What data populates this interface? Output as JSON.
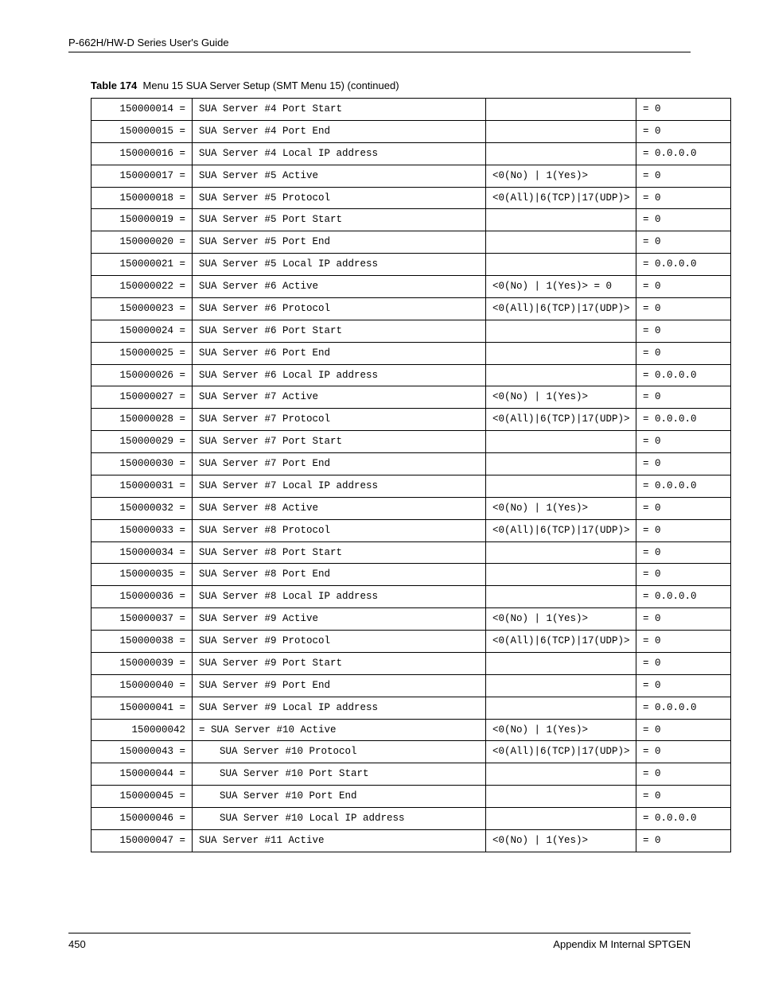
{
  "header": {
    "title": "P-662H/HW-D Series User's Guide"
  },
  "caption": {
    "label": "Table 174",
    "text": "Menu 15 SUA Server Setup (SMT Menu 15) (continued)"
  },
  "footer": {
    "page": "450",
    "section": "Appendix M Internal SPTGEN"
  },
  "rows": [
    {
      "c0": " 150000014 =",
      "c1": "SUA Server #4 Port Start",
      "c2": "",
      "c3": "= 0"
    },
    {
      "c0": " 150000015 =",
      "c1": "SUA Server #4 Port End",
      "c2": "",
      "c3": "= 0"
    },
    {
      "c0": " 150000016 =",
      "c1": "SUA Server #4 Local IP address",
      "c2": "",
      "c3": "= 0.0.0.0"
    },
    {
      "c0": " 150000017 =",
      "c1": "SUA Server #5 Active",
      "c2": "<0(No) | 1(Yes)>",
      "c3": "= 0"
    },
    {
      "c0": " 150000018 =",
      "c1": "SUA Server #5 Protocol",
      "c2": "<0(All)|6(TCP)|17(UDP)>",
      "c3": "= 0"
    },
    {
      "c0": " 150000019 =",
      "c1": "SUA Server #5 Port Start",
      "c2": "",
      "c3": "= 0"
    },
    {
      "c0": " 150000020 =",
      "c1": "SUA Server #5 Port End",
      "c2": "",
      "c3": "= 0"
    },
    {
      "c0": " 150000021 =",
      "c1": "SUA Server #5 Local IP address",
      "c2": "",
      "c3": "= 0.0.0.0"
    },
    {
      "c0": " 150000022 =",
      "c1": "SUA Server #6 Active",
      "c2": "<0(No) | 1(Yes)> = 0",
      "c3": "= 0"
    },
    {
      "c0": " 150000023 =",
      "c1": "SUA Server #6 Protocol",
      "c2": "<0(All)|6(TCP)|17(UDP)>",
      "c3": "= 0"
    },
    {
      "c0": " 150000024 =",
      "c1": "SUA Server #6 Port Start",
      "c2": "",
      "c3": "= 0"
    },
    {
      "c0": " 150000025 =",
      "c1": "SUA Server #6 Port End",
      "c2": "",
      "c3": "= 0"
    },
    {
      "c0": " 150000026 =",
      "c1": "SUA Server #6 Local IP address",
      "c2": "",
      "c3": "= 0.0.0.0"
    },
    {
      "c0": " 150000027 =",
      "c1": "SUA Server #7 Active",
      "c2": "<0(No) | 1(Yes)>",
      "c3": "= 0"
    },
    {
      "c0": " 150000028 =",
      "c1": "SUA Server #7 Protocol",
      "c2": "<0(All)|6(TCP)|17(UDP)>",
      "c3": "= 0.0.0.0"
    },
    {
      "c0": " 150000029 =",
      "c1": "SUA Server #7 Port Start",
      "c2": "",
      "c3": "= 0"
    },
    {
      "c0": " 150000030 =",
      "c1": "SUA Server #7 Port End",
      "c2": "",
      "c3": "= 0"
    },
    {
      "c0": " 150000031 =",
      "c1": "SUA Server #7 Local IP address",
      "c2": "",
      "c3": "= 0.0.0.0"
    },
    {
      "c0": " 150000032 =",
      "c1": "SUA Server #8 Active",
      "c2": "<0(No) | 1(Yes)>",
      "c3": "= 0"
    },
    {
      "c0": " 150000033 =",
      "c1": "SUA Server #8 Protocol",
      "c2": "<0(All)|6(TCP)|17(UDP)>",
      "c3": "= 0"
    },
    {
      "c0": " 150000034 =",
      "c1": "SUA Server #8 Port Start",
      "c2": "",
      "c3": "= 0"
    },
    {
      "c0": " 150000035 =",
      "c1": "SUA Server #8 Port End",
      "c2": "",
      "c3": "= 0"
    },
    {
      "c0": " 150000036 =",
      "c1": "SUA Server #8 Local IP address",
      "c2": "",
      "c3": "= 0.0.0.0"
    },
    {
      "c0": " 150000037 =",
      "c1": "SUA Server #9 Active",
      "c2": "<0(No) | 1(Yes)>",
      "c3": "= 0"
    },
    {
      "c0": " 150000038 =",
      "c1": "SUA Server #9 Protocol",
      "c2": "<0(All)|6(TCP)|17(UDP)>",
      "c3": "= 0"
    },
    {
      "c0": " 150000039 =",
      "c1": "SUA Server #9 Port Start",
      "c2": "",
      "c3": "= 0"
    },
    {
      "c0": " 150000040 =",
      "c1": "SUA Server #9 Port End",
      "c2": "",
      "c3": "= 0"
    },
    {
      "c0": " 150000041 =",
      "c1": "SUA Server #9 Local IP address",
      "c2": "",
      "c3": "= 0.0.0.0"
    },
    {
      "c0": "150000042",
      "c1": "= SUA Server #10 Active",
      "c2": "<0(No) | 1(Yes)>",
      "c3": "= 0"
    },
    {
      "c0": " 150000043 =",
      "c1": "   SUA Server #10 Protocol",
      "c2": "<0(All)|6(TCP)|17(UDP)>",
      "c3": "= 0",
      "indent": true
    },
    {
      "c0": " 150000044 =",
      "c1": "   SUA Server #10 Port Start",
      "c2": "",
      "c3": "= 0",
      "indent": true
    },
    {
      "c0": " 150000045 =",
      "c1": "   SUA Server #10 Port End",
      "c2": "",
      "c3": "= 0",
      "indent": true
    },
    {
      "c0": " 150000046 =",
      "c1": "   SUA Server #10 Local IP address",
      "c2": "",
      "c3": "= 0.0.0.0",
      "indent": true
    },
    {
      "c0": " 150000047 =",
      "c1": "SUA Server #11 Active",
      "c2": "<0(No) | 1(Yes)>",
      "c3": "= 0"
    }
  ]
}
